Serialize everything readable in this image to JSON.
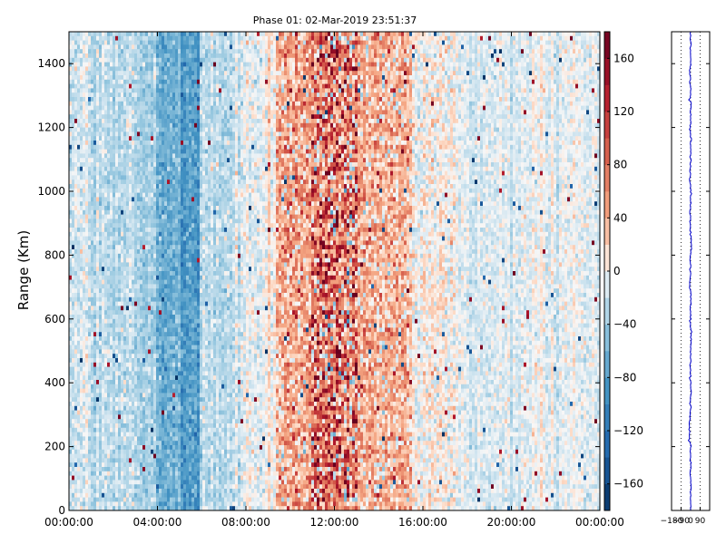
{
  "chart_data": [
    {
      "type": "heatmap",
      "title": "Phase 01: 02-Mar-2019 23:51:37",
      "xlabel": "",
      "ylabel": "Range (Km)",
      "x_tick_labels": [
        "00:00:00",
        "04:00:00",
        "08:00:00",
        "12:00:00",
        "16:00:00",
        "20:00:00",
        "00:00:00"
      ],
      "x_tick_hours": [
        0,
        4,
        8,
        12,
        16,
        20,
        24
      ],
      "xlim_hours": [
        0,
        24
      ],
      "y_ticks": [
        0,
        200,
        400,
        600,
        800,
        1000,
        1200,
        1400
      ],
      "ylim": [
        0,
        1500
      ],
      "colormap": "RdBu_r (blue = negative, white = 0, red = positive)",
      "colorbar": {
        "ticks": [
          -160,
          -120,
          -80,
          -40,
          0,
          40,
          80,
          120,
          160
        ],
        "tick_labels": [
          "−160",
          "−120",
          "−80",
          "−40",
          "0",
          "40",
          "80",
          "120",
          "160"
        ],
        "range": [
          -180,
          180
        ]
      },
      "column_profile": [
        {
          "from_h": 0.0,
          "to_h": 1.0,
          "mean": -15,
          "spread": 25
        },
        {
          "from_h": 1.0,
          "to_h": 3.0,
          "mean": -22,
          "spread": 25
        },
        {
          "from_h": 3.0,
          "to_h": 3.9,
          "mean": -35,
          "spread": 25
        },
        {
          "from_h": 3.9,
          "to_h": 5.0,
          "mean": -65,
          "spread": 30
        },
        {
          "from_h": 5.0,
          "to_h": 5.9,
          "mean": -80,
          "spread": 30
        },
        {
          "from_h": 5.9,
          "to_h": 7.5,
          "mean": -25,
          "spread": 25
        },
        {
          "from_h": 7.5,
          "to_h": 9.3,
          "mean": -5,
          "spread": 25
        },
        {
          "from_h": 9.3,
          "to_h": 11.0,
          "mean": 40,
          "spread": 60
        },
        {
          "from_h": 11.0,
          "to_h": 13.0,
          "mean": 65,
          "spread": 110
        },
        {
          "from_h": 13.0,
          "to_h": 15.5,
          "mean": 35,
          "spread": 55
        },
        {
          "from_h": 15.5,
          "to_h": 17.5,
          "mean": 5,
          "spread": 30
        },
        {
          "from_h": 17.5,
          "to_h": 20.5,
          "mean": -10,
          "spread": 20
        },
        {
          "from_h": 20.5,
          "to_h": 24.0,
          "mean": -8,
          "spread": 20
        }
      ]
    },
    {
      "type": "line",
      "title": "",
      "xlabel": "",
      "ylabel": "",
      "x_tick_labels": [
        "−180",
        "−90",
        "0",
        "90"
      ],
      "x_ticks": [
        -180,
        -90,
        0,
        90
      ],
      "xlim": [
        -180,
        180
      ],
      "ylim": [
        0,
        1500
      ],
      "grid": "vertical dotted",
      "series": [
        {
          "color": "#0000cc",
          "mean": 0,
          "jitter": 6
        }
      ]
    }
  ]
}
